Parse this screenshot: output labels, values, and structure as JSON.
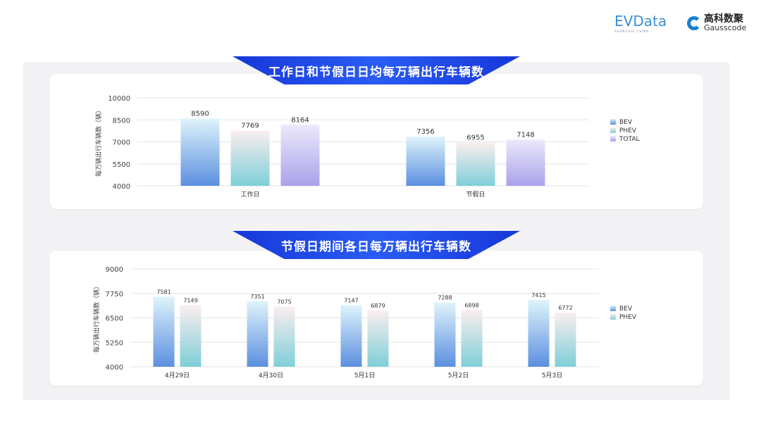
{
  "logos": {
    "evdata": "EVData",
    "evdata_sub": "SHANGHAI CHINA",
    "gauss": "高科数聚",
    "gauss_sub": "Gausscode"
  },
  "colors": {
    "banner": "#1a3fe0",
    "bev": [
      "#5b8fe0",
      "#dff4fb"
    ],
    "phev": [
      "#7ecfd9",
      "#fbeeee"
    ],
    "total": [
      "#a9a2ea",
      "#ece9fb"
    ]
  },
  "chart_data": [
    {
      "type": "bar",
      "title": "工作日和节假日日均每万辆出行车辆数",
      "ylabel": "每万辆出行车辆数（辆）",
      "ylim": [
        4000,
        10000
      ],
      "yticks": [
        4000,
        5500,
        7000,
        8500,
        10000
      ],
      "grid": true,
      "legend_position": "right",
      "categories": [
        "工作日",
        "节假日"
      ],
      "series": [
        {
          "name": "BEV",
          "values": [
            8590,
            7356
          ]
        },
        {
          "name": "PHEV",
          "values": [
            7769,
            6955
          ]
        },
        {
          "name": "TOTAL",
          "values": [
            8164,
            7148
          ]
        }
      ]
    },
    {
      "type": "bar",
      "title": "节假日期间各日每万辆出行车辆数",
      "ylabel": "每万辆出行车辆数（辆）",
      "ylim": [
        4000,
        9000
      ],
      "yticks": [
        4000,
        5250,
        6500,
        7750,
        9000
      ],
      "grid": true,
      "legend_position": "right",
      "categories": [
        "4月29日",
        "4月30日",
        "5月1日",
        "5月2日",
        "5月3日"
      ],
      "series": [
        {
          "name": "BEV",
          "values": [
            7581,
            7351,
            7147,
            7288,
            7415
          ]
        },
        {
          "name": "PHEV",
          "values": [
            7149,
            7075,
            6879,
            6898,
            6772
          ]
        }
      ]
    }
  ]
}
